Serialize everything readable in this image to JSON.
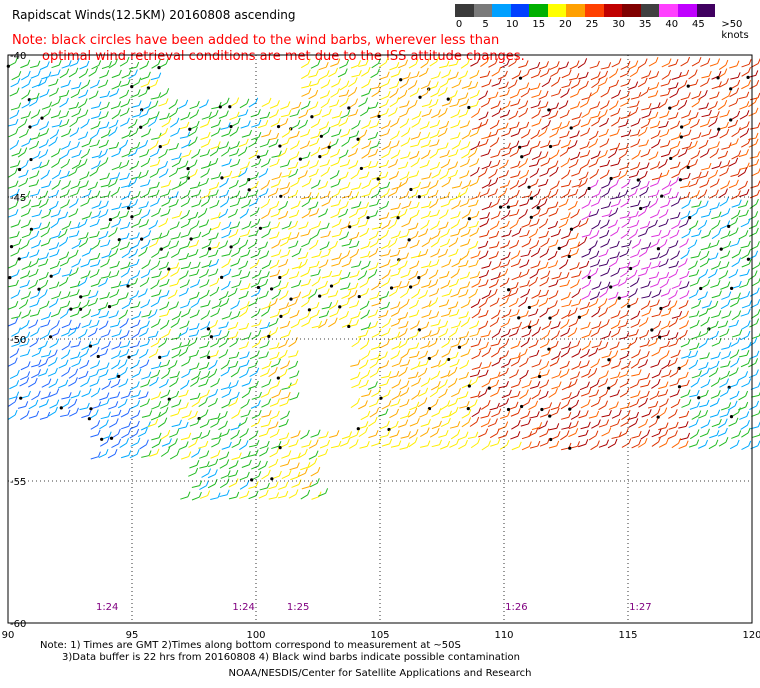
{
  "title": "Rapidscat Winds(12.5KM) 20160808 ascending",
  "note": {
    "line1": "Note: black circles have been added to the wind barbs, wherever less than",
    "line2": "optimal wind retrieval conditions are met due to the ISS attitude changes."
  },
  "color_scale": {
    "unit_label": ">50 knots",
    "labels": [
      "0",
      "5",
      "10",
      "15",
      "20",
      "25",
      "30",
      "35",
      "40",
      "45"
    ],
    "colors": [
      "#3a3a3a",
      "#7a7a7a",
      "#00a0ff",
      "#0040ff",
      "#00b000",
      "#ffff00",
      "#ffa000",
      "#ff4000",
      "#c00000",
      "#800000",
      "#404040",
      "#ff40ff",
      "#c000ff",
      "#400060"
    ]
  },
  "map": {
    "lon_labels": [
      "90",
      "95",
      "100",
      "105",
      "110",
      "115",
      "120"
    ],
    "lat_labels": [
      "-40",
      "-45",
      "-50",
      "-55",
      "-60"
    ],
    "time_labels": [
      "1:24",
      "1:24",
      "1:25",
      "1:26",
      "1:27"
    ],
    "time_color": "#800080"
  },
  "footer": {
    "line1": "Note: 1) Times are GMT 2)Times along bottom correspond to measurement at ~50S",
    "line2": "3)Data buffer is 22 hrs from 20160808 4) Black wind barbs indicate possible contamination",
    "credit": "NOAA/NESDIS/Center for Satellite Applications and Research"
  }
}
